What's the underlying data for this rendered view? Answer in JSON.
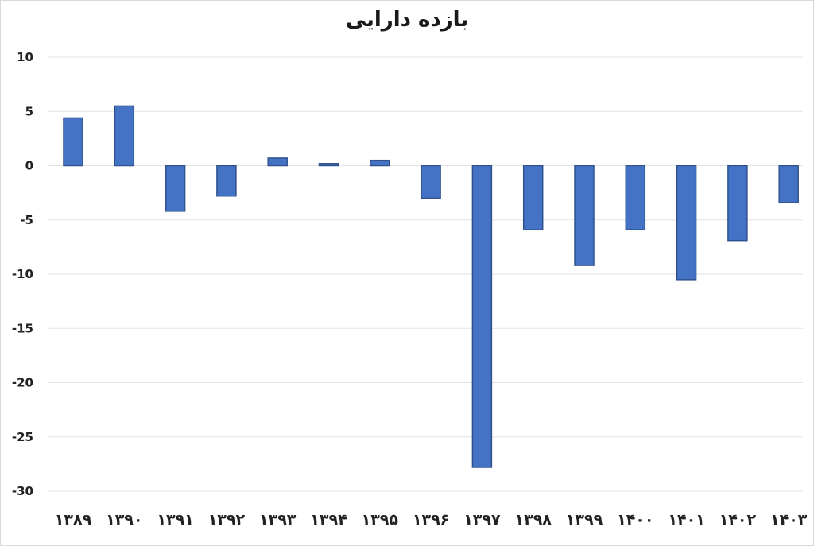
{
  "chart_data": {
    "type": "bar",
    "title": "بازده دارایی",
    "categories": [
      "۱۳۸۹",
      "۱۳۹۰",
      "۱۳۹۱",
      "۱۳۹۲",
      "۱۳۹۳",
      "۱۳۹۴",
      "۱۳۹۵",
      "۱۳۹۶",
      "۱۳۹۷",
      "۱۳۹۸",
      "۱۳۹۹",
      "۱۴۰۰",
      "۱۴۰۱",
      "۱۴۰۲",
      "۱۴۰۳"
    ],
    "values": [
      4.4,
      5.5,
      -4.2,
      -2.8,
      0.7,
      0.2,
      0.5,
      -3.0,
      -27.8,
      -5.9,
      -9.2,
      -5.9,
      -10.5,
      -6.9,
      -3.4
    ],
    "ylim": [
      -30,
      10
    ],
    "yticks": [
      "10",
      "5",
      "0",
      "-5",
      "-10",
      "-15",
      "-20",
      "-25",
      "-30"
    ],
    "ytick_values": [
      10,
      5,
      0,
      -5,
      -10,
      -15,
      -20,
      -25,
      -30
    ],
    "grid": true,
    "colors": {
      "bar_fill": "#4472c4",
      "bar_edge": "#2f528f"
    }
  }
}
